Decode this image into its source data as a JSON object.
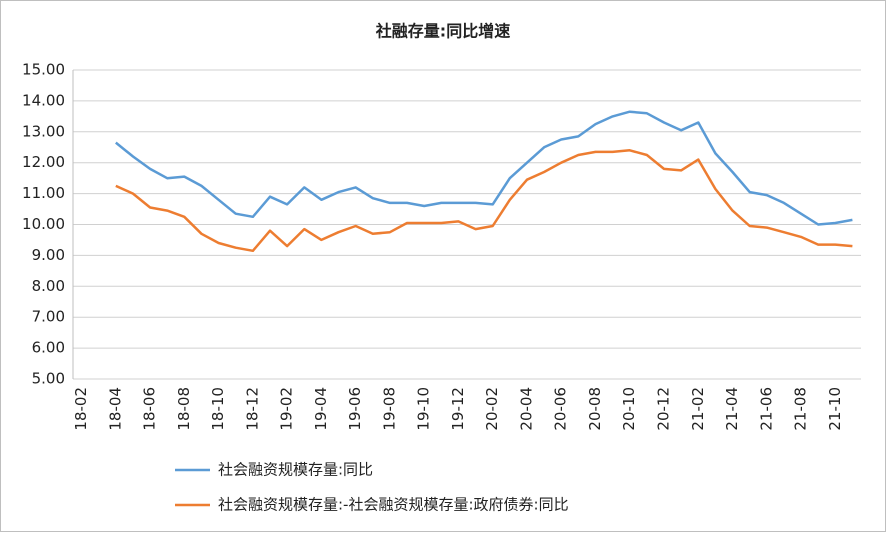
{
  "chart_data": {
    "type": "line",
    "title": "社融存量:同比增速",
    "categories": [
      "18-02",
      null,
      "18-04",
      null,
      "18-06",
      null,
      "18-08",
      null,
      "18-10",
      null,
      "18-12",
      null,
      "19-02",
      null,
      "19-04",
      null,
      "19-06",
      null,
      "19-08",
      null,
      "19-10",
      null,
      "19-12",
      null,
      "20-02",
      null,
      "20-04",
      null,
      "20-06",
      null,
      "20-08",
      null,
      "20-10",
      null,
      "20-12",
      null,
      "21-02",
      null,
      "21-04",
      null,
      "21-06",
      null,
      "21-08",
      null,
      "21-10",
      null
    ],
    "series": [
      {
        "name": "社会融资规模存量:同比",
        "color": "#5b9bd5",
        "values": [
          null,
          null,
          12.65,
          12.2,
          11.8,
          11.5,
          11.55,
          11.25,
          10.8,
          10.35,
          10.25,
          10.9,
          10.65,
          11.2,
          10.8,
          11.05,
          11.2,
          10.85,
          10.7,
          10.7,
          10.6,
          10.7,
          10.7,
          10.7,
          10.65,
          11.5,
          12.0,
          12.5,
          12.75,
          12.85,
          13.25,
          13.5,
          13.65,
          13.6,
          13.3,
          13.05,
          13.3,
          12.3,
          11.7,
          11.05,
          10.95,
          10.7,
          10.35,
          10.0,
          10.05,
          10.15
        ]
      },
      {
        "name": "社会融资规模存量:-社会融资规模存量:政府债券:同比",
        "color": "#ed7d31",
        "values": [
          null,
          null,
          11.25,
          11.0,
          10.55,
          10.45,
          10.25,
          9.7,
          9.4,
          9.25,
          9.15,
          9.8,
          9.3,
          9.85,
          9.5,
          9.75,
          9.95,
          9.7,
          9.75,
          10.05,
          10.05,
          10.05,
          10.1,
          9.85,
          9.95,
          10.8,
          11.45,
          11.7,
          12.0,
          12.25,
          12.35,
          12.35,
          12.4,
          12.25,
          11.8,
          11.75,
          12.1,
          11.15,
          10.45,
          9.95,
          9.9,
          9.75,
          9.6,
          9.35,
          9.35,
          9.3
        ]
      }
    ],
    "ylim": [
      5,
      15
    ],
    "yticks": [
      {
        "value": 5,
        "label": "5.00"
      },
      {
        "value": 6,
        "label": "6.00"
      },
      {
        "value": 7,
        "label": "7.00"
      },
      {
        "value": 8,
        "label": "8.00"
      },
      {
        "value": 9,
        "label": "9.00"
      },
      {
        "value": 10,
        "label": "10.00"
      },
      {
        "value": 11,
        "label": "11.00"
      },
      {
        "value": 12,
        "label": "12.00"
      },
      {
        "value": 13,
        "label": "13.00"
      },
      {
        "value": 14,
        "label": "14.00"
      },
      {
        "value": 15,
        "label": "15.00"
      }
    ],
    "grid": true,
    "legend": "bottom"
  }
}
